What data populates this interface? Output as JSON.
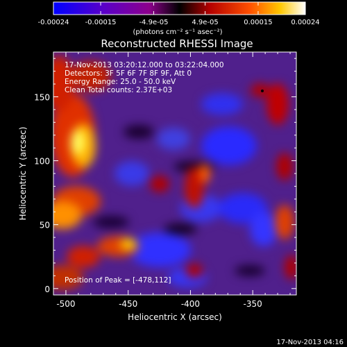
{
  "chart_data": {
    "type": "heatmap",
    "title": "Reconstructed RHESSI Image",
    "xlabel": "Heliocentric X (arcsec)",
    "ylabel": "Heliocentric Y (arcsec)",
    "xlim": [
      -510,
      -315
    ],
    "ylim": [
      -5,
      185
    ],
    "x_ticks": [
      -500,
      -450,
      -400,
      -350
    ],
    "y_ticks": [
      0,
      50,
      100,
      150
    ],
    "colorbar": {
      "range": [
        -0.00024,
        0.00024
      ],
      "tick_values": [
        -0.00024,
        -0.00015,
        -4.9e-05,
        4.9e-05,
        0.00015,
        0.00024
      ],
      "tick_labels": [
        "-0.00024",
        "-0.00015",
        "-4.9e-05",
        "4.9e-05",
        "0.00015",
        "0.00024"
      ],
      "unit_label": "(photons cm⁻² s⁻¹ asec⁻²)",
      "colors": [
        "#0000ff",
        "#5a00c8",
        "#8c008c",
        "#000000",
        "#b40000",
        "#ff5000",
        "#ffc800",
        "#ffffff"
      ]
    },
    "annotations": [
      "17-Nov-2013 03:20:12.000 to 03:22:04.000",
      "Detectors: 3F 5F 6F 7F 8F 9F, Att 0",
      "Energy Range: 25.0 - 50.0 keV",
      "Clean     Total counts: 2.37E+03",
      "Position of Peak = [-478,112]"
    ],
    "peak": {
      "x": -478,
      "y": 112
    },
    "grid": false
  },
  "footer": {
    "timestamp": "17-Nov-2013 04:16"
  }
}
